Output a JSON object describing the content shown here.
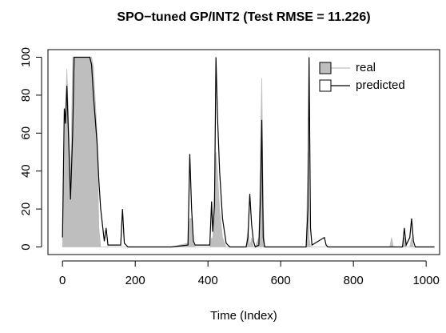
{
  "chart_data": {
    "type": "line",
    "title": "SPO−tuned GP/INT2 (Test RMSE = 11.226)",
    "xlabel": "Time (Index)",
    "x": [
      0,
      5,
      8,
      12,
      18,
      22,
      28,
      32,
      50,
      60,
      70,
      75,
      80,
      85,
      95,
      100,
      105,
      115,
      120,
      125,
      135,
      160,
      165,
      170,
      180,
      300,
      345,
      350,
      355,
      360,
      365,
      405,
      410,
      413,
      418,
      422,
      426,
      432,
      440,
      450,
      455,
      460,
      505,
      510,
      515,
      520,
      525,
      530,
      540,
      545,
      548,
      552,
      556,
      670,
      675,
      678,
      682,
      686,
      720,
      725,
      730,
      900,
      905,
      910,
      935,
      940,
      945,
      955,
      960,
      965,
      970,
      1023
    ],
    "series": [
      {
        "name": "real",
        "color": "#bebebe",
        "fill": true,
        "values": [
          0,
          40,
          70,
          94,
          60,
          30,
          100,
          100,
          100,
          100,
          100,
          100,
          100,
          95,
          60,
          10,
          0,
          0,
          0,
          0,
          0,
          0,
          0,
          0,
          0,
          0,
          2,
          15,
          15,
          3,
          0,
          0,
          5,
          3,
          30,
          50,
          40,
          20,
          5,
          0,
          0,
          0,
          0,
          10,
          0,
          5,
          0,
          0,
          5,
          60,
          89,
          20,
          0,
          0,
          50,
          5,
          0,
          0,
          0,
          0,
          0,
          0,
          5,
          0,
          0,
          5,
          0,
          0,
          5,
          0,
          0,
          0
        ]
      },
      {
        "name": "predicted",
        "color": "#000000",
        "fill": false,
        "values": [
          5,
          73,
          65,
          85,
          50,
          25,
          60,
          100,
          100,
          100,
          100,
          100,
          96,
          80,
          55,
          35,
          20,
          3,
          10,
          1,
          1,
          1,
          20,
          2,
          0,
          0,
          1,
          49,
          20,
          3,
          1,
          1,
          24,
          8,
          22,
          100,
          70,
          40,
          15,
          2,
          1,
          0,
          0,
          5,
          28,
          12,
          3,
          0,
          1,
          30,
          67,
          5,
          0,
          0,
          20,
          100,
          10,
          1,
          5,
          1,
          0,
          0,
          0,
          0,
          0,
          10,
          1,
          5,
          15,
          3,
          0,
          0
        ]
      }
    ],
    "xlim": [
      -40,
      1037
    ],
    "xticks": [
      0,
      200,
      400,
      600,
      800,
      1000
    ],
    "ylim": [
      -4,
      104
    ],
    "yticks": [
      0,
      20,
      40,
      60,
      80,
      100
    ],
    "legend": "topright"
  }
}
